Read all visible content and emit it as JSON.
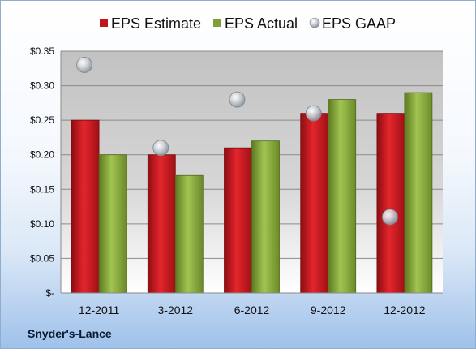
{
  "company": "Snyder's-Lance",
  "colors": {
    "estimate": "#c0161c",
    "actual": "#7f9f35",
    "gaap": "#b5bcc4"
  },
  "chart_data": {
    "type": "bar",
    "categories": [
      "12-2011",
      "3-2012",
      "6-2012",
      "9-2012",
      "12-2012"
    ],
    "series": [
      {
        "name": "EPS Estimate",
        "kind": "bar",
        "values": [
          0.25,
          0.2,
          0.21,
          0.26,
          0.26
        ]
      },
      {
        "name": "EPS Actual",
        "kind": "bar",
        "values": [
          0.2,
          0.17,
          0.22,
          0.28,
          0.29
        ]
      },
      {
        "name": "EPS GAAP",
        "kind": "scatter",
        "values": [
          0.33,
          0.21,
          0.28,
          0.26,
          0.11
        ]
      }
    ],
    "ylim": [
      0,
      0.35
    ],
    "yticks": [
      0,
      0.05,
      0.1,
      0.15,
      0.2,
      0.25,
      0.3,
      0.35
    ],
    "ytick_labels": [
      "$-",
      "$0.05",
      "$0.10",
      "$0.15",
      "$0.20",
      "$0.25",
      "$0.30",
      "$0.35"
    ],
    "grid": true,
    "legend_position": "top",
    "xlabel": "",
    "ylabel": ""
  }
}
